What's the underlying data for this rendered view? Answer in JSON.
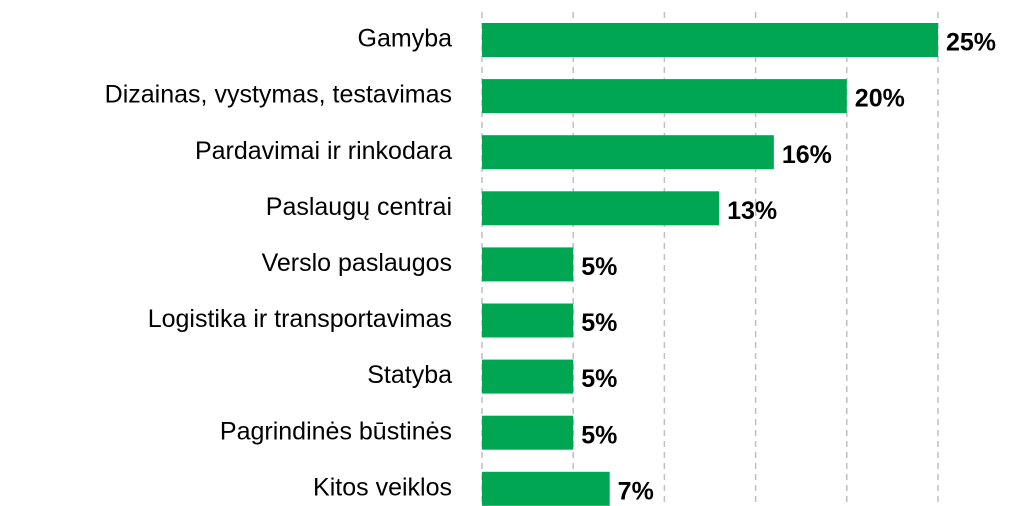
{
  "chart_data": {
    "type": "hbar",
    "categories": [
      "Gamyba",
      "Dizainas, vystymas, testavimas",
      "Pardavimai ir rinkodara",
      "Paslaugų centrai",
      "Verslo paslaugos",
      "Logistika ir transportavimas",
      "Statyba",
      "Pagrindinės būstinės",
      "Kitos veiklos"
    ],
    "values": [
      25,
      20,
      16,
      13,
      5,
      5,
      5,
      5,
      7
    ],
    "value_labels": [
      "25%",
      "20%",
      "16%",
      "13%",
      "5%",
      "5%",
      "5%",
      "5%",
      "7%"
    ],
    "color": "#00a651",
    "xlim": [
      0,
      25
    ],
    "xticks": [
      0,
      5,
      10,
      15,
      20,
      25
    ],
    "grid": true
  }
}
